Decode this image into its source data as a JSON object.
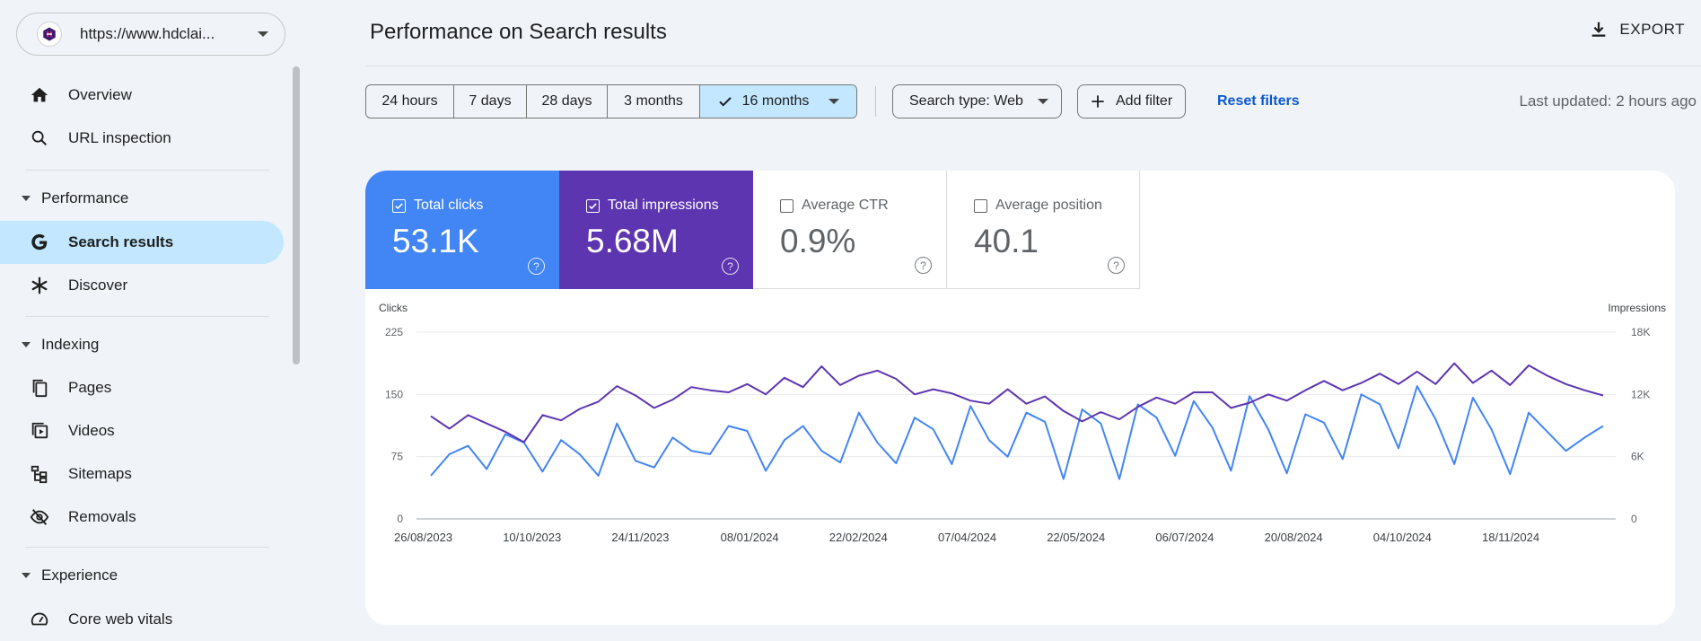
{
  "property": {
    "url": "https://www.hdclai..."
  },
  "sidebar": {
    "overview": "Overview",
    "url_inspection": "URL inspection",
    "performance": "Performance",
    "search_results": "Search results",
    "discover": "Discover",
    "indexing": "Indexing",
    "pages": "Pages",
    "videos": "Videos",
    "sitemaps": "Sitemaps",
    "removals": "Removals",
    "experience": "Experience",
    "core_web_vitals": "Core web vitals"
  },
  "header": {
    "title": "Performance on Search results",
    "export": "EXPORT"
  },
  "filters": {
    "ranges": [
      "24 hours",
      "7 days",
      "28 days",
      "3 months",
      "16 months"
    ],
    "selected_range": "16 months",
    "search_type": "Search type: Web",
    "add_filter": "Add filter",
    "reset": "Reset filters",
    "last_updated": "Last updated: 2 hours ago"
  },
  "metrics": {
    "clicks": {
      "label": "Total clicks",
      "value": "53.1K",
      "checked": true,
      "color": "#4285f4"
    },
    "impressions": {
      "label": "Total impressions",
      "value": "5.68M",
      "checked": true,
      "color": "#5e35b1"
    },
    "ctr": {
      "label": "Average CTR",
      "value": "0.9%",
      "checked": false
    },
    "position": {
      "label": "Average position",
      "value": "40.1",
      "checked": false
    }
  },
  "chart_data": {
    "type": "line",
    "left_axis_label": "Clicks",
    "right_axis_label": "Impressions",
    "left_ticks": [
      "0",
      "75",
      "150",
      "225"
    ],
    "right_ticks": [
      "0",
      "6K",
      "12K",
      "18K"
    ],
    "ylim_left": [
      0,
      225
    ],
    "ylim_right": [
      0,
      18000
    ],
    "x_labels": [
      "26/08/2023",
      "10/10/2023",
      "24/11/2023",
      "08/01/2024",
      "22/02/2024",
      "07/04/2024",
      "22/05/2024",
      "06/07/2024",
      "20/08/2024",
      "04/10/2024",
      "18/11/2024"
    ],
    "series": [
      {
        "name": "Clicks",
        "axis": "left",
        "color": "#4285f4",
        "values": [
          52,
          78,
          88,
          60,
          102,
          92,
          57,
          95,
          78,
          52,
          115,
          70,
          62,
          98,
          82,
          78,
          112,
          106,
          58,
          95,
          112,
          82,
          68,
          128,
          92,
          67,
          122,
          108,
          66,
          136,
          95,
          75,
          128,
          117,
          48,
          132,
          115,
          48,
          138,
          122,
          76,
          142,
          110,
          58,
          148,
          108,
          55,
          126,
          116,
          72,
          150,
          138,
          85,
          160,
          120,
          66,
          146,
          108,
          54,
          128,
          105,
          82,
          98,
          112
        ]
      },
      {
        "name": "Impressions",
        "axis": "right",
        "color": "#5e35b1",
        "values": [
          9900,
          8700,
          10000,
          9200,
          8400,
          7400,
          10000,
          9500,
          10600,
          11300,
          12800,
          11900,
          10700,
          11500,
          12700,
          12400,
          12200,
          13000,
          12000,
          13600,
          12700,
          14700,
          12900,
          13800,
          14300,
          13500,
          12000,
          12500,
          12100,
          11400,
          11100,
          12500,
          11100,
          11800,
          10400,
          9400,
          10300,
          9600,
          10800,
          11700,
          11100,
          12200,
          12200,
          10700,
          11200,
          12000,
          11400,
          12400,
          13300,
          12400,
          13100,
          14000,
          13000,
          14200,
          13000,
          15000,
          13100,
          14300,
          12900,
          14800,
          13800,
          13000,
          12400,
          11900
        ]
      }
    ]
  }
}
